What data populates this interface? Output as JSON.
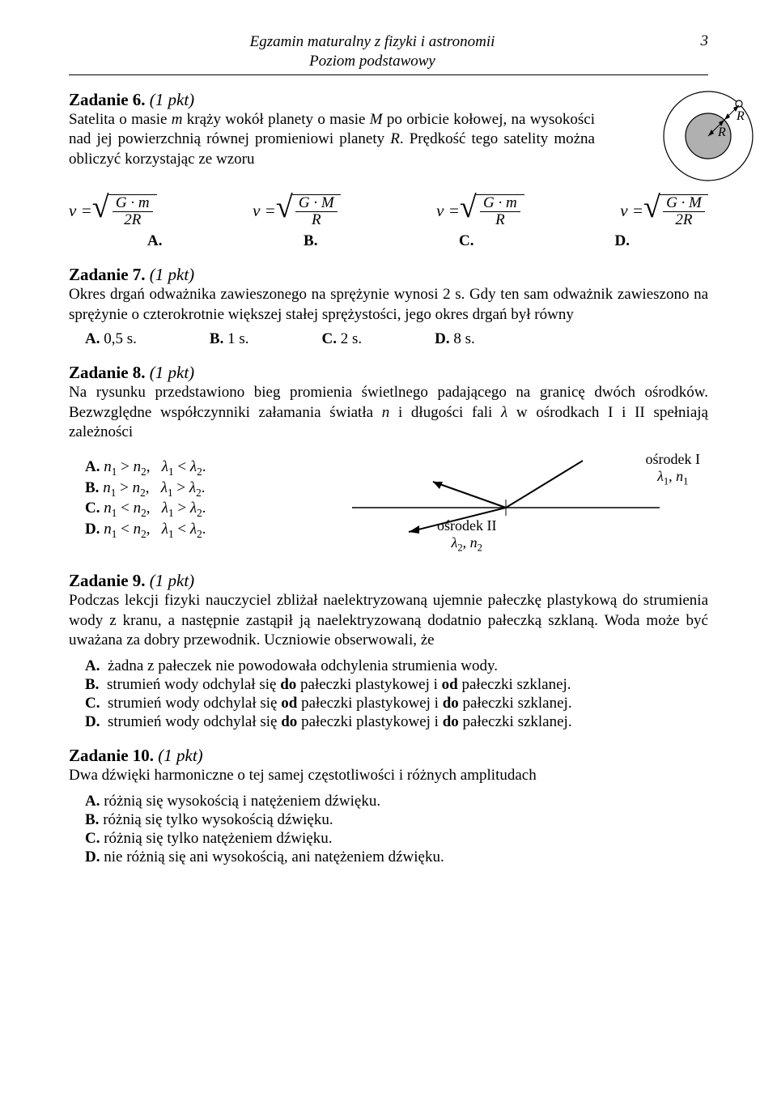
{
  "page": {
    "header_line1": "Egzamin maturalny z fizyki i astronomii",
    "header_line2": "Poziom podstawowy",
    "number": "3"
  },
  "colors": {
    "planet_fill": "#b0b0b0",
    "line": "#000000",
    "background": "#ffffff"
  },
  "z6": {
    "title": "Zadanie 6.",
    "pkt": "(1 pkt)",
    "text": "Satelita o masie m krąży wokół planety o masie M po orbicie kołowej, na wysokości nad jej powierzchnią równej promieniowi planety R. Prędkość tego satelity można obliczyć korzystając ze wzoru",
    "formulas": [
      {
        "num": "G · m",
        "den": "2R",
        "label": "A."
      },
      {
        "num": "G · M",
        "den": "R",
        "label": "B."
      },
      {
        "num": "G · m",
        "den": "R",
        "label": "C."
      },
      {
        "num": "G · M",
        "den": "2R",
        "label": "D."
      }
    ],
    "diagram": {
      "orbit_r": 55,
      "planet_r": 28,
      "sat_r": 4,
      "R_outer": "R",
      "R_inner": "R"
    }
  },
  "z7": {
    "title": "Zadanie 7.",
    "pkt": "(1 pkt)",
    "text": "Okres drgań odważnika zawieszonego na sprężynie wynosi 2 s. Gdy ten sam odważnik zawieszono na sprężynie o czterokrotnie większej stałej sprężystości, jego okres drgań był równy",
    "opts": [
      {
        "l": "A.",
        "t": "0,5 s."
      },
      {
        "l": "B.",
        "t": "1 s."
      },
      {
        "l": "C.",
        "t": "2 s."
      },
      {
        "l": "D.",
        "t": "8 s."
      }
    ]
  },
  "z8": {
    "title": "Zadanie 8.",
    "pkt": "(1 pkt)",
    "text": "Na rysunku przedstawiono bieg promienia świetlnego padającego na granicę dwóch ośrodków. Bezwzględne współczynniki załamania światła n i długości fali λ w ośrodkach I i II spełniają zależności",
    "opts": [
      {
        "l": "A.",
        "t": "n₁ > n₂,   λ₁ < λ₂."
      },
      {
        "l": "B.",
        "t": "n₁ > n₂,   λ₁ > λ₂."
      },
      {
        "l": "C.",
        "t": "n₁ < n₂,   λ₁ > λ₂."
      },
      {
        "l": "D.",
        "t": "n₁ < n₂,   λ₁ < λ₂."
      }
    ],
    "label_right_1": "ośrodek I",
    "label_right_2": "λ₁, n₁",
    "label_left_1": "ośrodek II",
    "label_left_2": "λ₂, n₂"
  },
  "z9": {
    "title": "Zadanie 9.",
    "pkt": "(1 pkt)",
    "text": "Podczas lekcji fizyki nauczyciel zbliżał naelektryzowaną ujemnie pałeczkę plastykową do strumienia wody z kranu, a następnie zastąpił ją naelektryzowaną dodatnio pałeczką szklaną. Woda może być uważana za dobry przewodnik. Uczniowie obserwowali, że",
    "opts": [
      {
        "l": "A.",
        "t": "żadna z pałeczek nie powodowała odchylenia strumienia wody."
      },
      {
        "l": "B.",
        "t": "strumień wody odchylał się do pałeczki plastykowej i od pałeczki szklanej."
      },
      {
        "l": "C.",
        "t": "strumień wody odchylał się od pałeczki plastykowej i do pałeczki szklanej."
      },
      {
        "l": "D.",
        "t": "strumień wody odchylał się do pałeczki plastykowej i do pałeczki szklanej."
      }
    ]
  },
  "z10": {
    "title": "Zadanie 10.",
    "pkt": "(1 pkt)",
    "text": "Dwa dźwięki harmoniczne o tej samej częstotliwości i różnych amplitudach",
    "opts": [
      {
        "l": "A.",
        "t": "różnią się wysokością i natężeniem dźwięku."
      },
      {
        "l": "B.",
        "t": "różnią się tylko wysokością dźwięku."
      },
      {
        "l": "C.",
        "t": "różnią się tylko natężeniem dźwięku."
      },
      {
        "l": "D.",
        "t": "nie różnią się ani wysokością, ani natężeniem dźwięku."
      }
    ]
  }
}
